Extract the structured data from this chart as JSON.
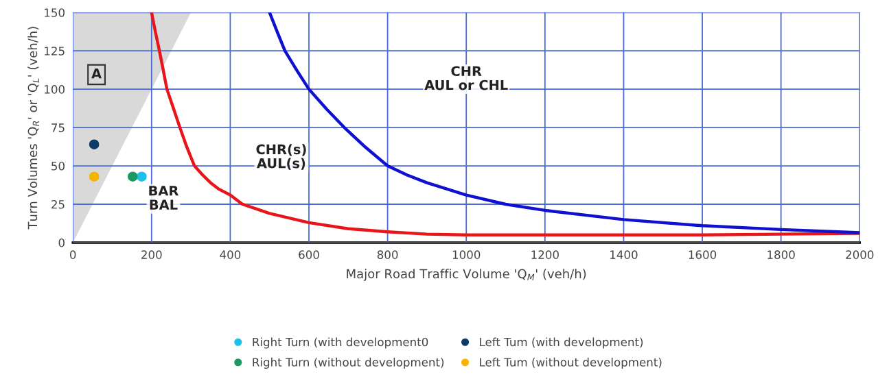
{
  "chart_data": {
    "type": "scatter",
    "xlabel": "Major Road Traffic Volume 'Q$_{M}$' (veh/h)",
    "ylabel": "Turn Volumes 'Q$_{R}$' or 'Q$_{L}$' (veh/h)",
    "xlim": [
      0,
      2000
    ],
    "ylim": [
      0,
      150
    ],
    "xticks": [
      0,
      200,
      400,
      600,
      800,
      1000,
      1200,
      1400,
      1600,
      1800,
      2000
    ],
    "yticks": [
      0,
      25,
      50,
      75,
      100,
      125,
      150
    ],
    "grid": true,
    "legend": "bottom",
    "series": [
      {
        "type": "line",
        "marker": "none",
        "color": "#e8161a",
        "x": [
          200,
          210,
          220,
          230,
          239,
          255,
          272,
          290,
          309,
          330,
          350,
          370,
          400,
          431,
          500,
          600,
          700,
          800,
          900,
          1000,
          1200,
          1400,
          1600,
          1800,
          2000
        ],
        "values": [
          150,
          137,
          125,
          112,
          100,
          88,
          75,
          62,
          50,
          44,
          39,
          35,
          31,
          25,
          19,
          13,
          9,
          7,
          5.5,
          5,
          5,
          5,
          5,
          5.5,
          6
        ]
      },
      {
        "type": "line",
        "marker": "none",
        "color": "#1010d0",
        "x": [
          500,
          520,
          539,
          570,
          600,
          645,
          690,
          740,
          800,
          850,
          900,
          950,
          1000,
          1100,
          1200,
          1400,
          1600,
          1800,
          2000
        ],
        "values": [
          150,
          137,
          125,
          112,
          100,
          87,
          75,
          63,
          50,
          44,
          39,
          35,
          31,
          25,
          21,
          15,
          11,
          8.5,
          6.5
        ]
      },
      {
        "name": "Right Turn (with development0",
        "marker": "circle",
        "color": "#1cc0e8",
        "x": [
          175
        ],
        "values": [
          43
        ]
      },
      {
        "name": "Left Tum (with development)",
        "marker": "circle",
        "color": "#0d3b66",
        "x": [
          54
        ],
        "values": [
          64
        ]
      },
      {
        "name": "Right Turn (without development)",
        "marker": "circle",
        "color": "#1a9a62",
        "x": [
          152
        ],
        "values": [
          43
        ]
      },
      {
        "name": "Left Tum (without development)",
        "marker": "circle",
        "color": "#f5b400",
        "x": [
          54
        ],
        "values": [
          43
        ]
      }
    ],
    "annotations": [
      "A",
      "BAR\nBAL",
      "CHR(s)\nAUL(s)",
      "CHR\nAUL or CHL"
    ]
  }
}
